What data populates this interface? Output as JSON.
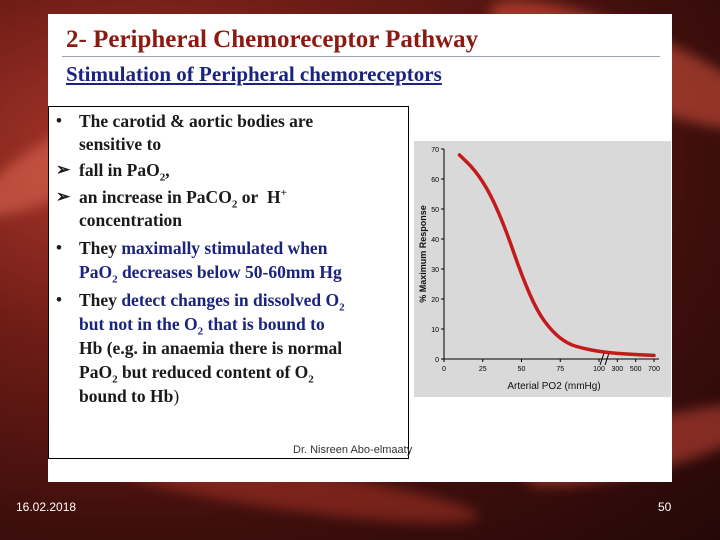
{
  "slide": {
    "title": "2- Peripheral Chemoreceptor Pathway",
    "subtitle": "Stimulation of Peripheral chemoreceptors"
  },
  "bullets": [
    {
      "marker": "•",
      "lines": [
        "The carotid & aortic bodies are",
        "sensitive to"
      ]
    },
    {
      "marker": "➢",
      "lines": [
        "fall in PaO2,"
      ]
    },
    {
      "marker": "➢",
      "lines": [
        "an increase in PaCO2 or  H+",
        "concentration"
      ]
    },
    {
      "marker": "•",
      "lines": [
        "They maximally stimulated when",
        "PaO2 decreases below 50-60mm Hg"
      ]
    },
    {
      "marker": "•",
      "lines": [
        "They detect changes in dissolved O2",
        "but not in the O2 that is bound to",
        "Hb (e.g. in anaemia there is normal",
        "PaO2 but reduced content of O2",
        "bound to Hb)"
      ]
    }
  ],
  "credit": "Dr. Nisreen Abo-elmaaty",
  "footer": {
    "date": "16.02.2018",
    "page": "50"
  },
  "chart_data": {
    "type": "line",
    "xlabel": "Arterial PO2  (mmHg)",
    "ylabel": "% Maximum Response",
    "x_ticks": [
      "0",
      "25",
      "50",
      "75",
      "100",
      "300",
      "500",
      "700"
    ],
    "y_ticks": [
      0,
      10,
      20,
      30,
      40,
      50,
      60,
      70
    ],
    "ylim": [
      0,
      70
    ],
    "axis_break": "between 100 and 300",
    "series": [
      {
        "color": "#c41a1a",
        "points": [
          {
            "x": 10,
            "y": 68
          },
          {
            "x": 20,
            "y": 63
          },
          {
            "x": 30,
            "y": 55
          },
          {
            "x": 40,
            "y": 43
          },
          {
            "x": 50,
            "y": 28
          },
          {
            "x": 60,
            "y": 16
          },
          {
            "x": 70,
            "y": 9
          },
          {
            "x": 80,
            "y": 5
          },
          {
            "x": 90,
            "y": 3.5
          },
          {
            "x": 100,
            "y": 2.5
          },
          {
            "x": 300,
            "y": 1.8
          },
          {
            "x": 500,
            "y": 1.5
          },
          {
            "x": 700,
            "y": 1.2
          }
        ]
      }
    ]
  }
}
